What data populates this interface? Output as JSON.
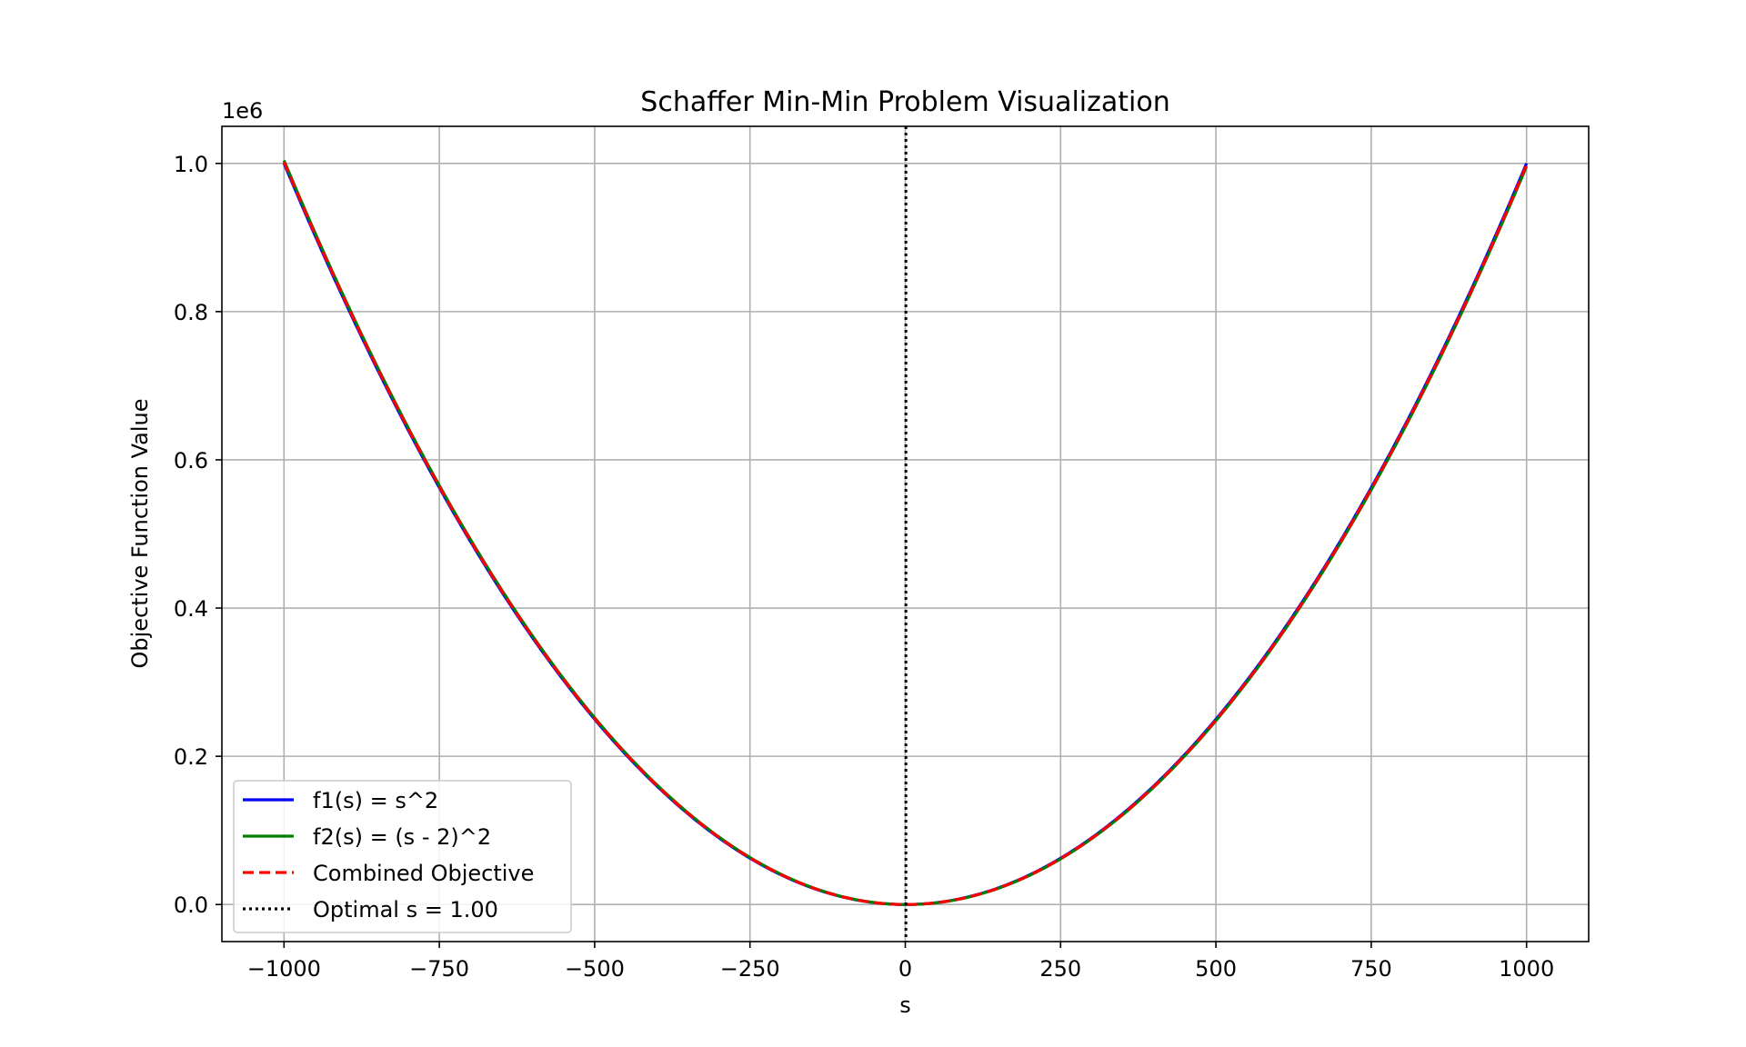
{
  "chart_data": {
    "type": "line",
    "title": "Schaffer Min-Min Problem Visualization",
    "xlabel": "s",
    "ylabel": "Objective Function Value",
    "offset_label": "1e6",
    "xlim": [
      -1100,
      1100
    ],
    "ylim": [
      -0.05,
      1.05
    ],
    "y_scale_factor": 1000000,
    "x_ticks": [
      -1000,
      -750,
      -500,
      -250,
      0,
      250,
      500,
      750,
      1000
    ],
    "x_tick_labels": [
      "−1000",
      "−750",
      "−500",
      "−250",
      "0",
      "250",
      "500",
      "750",
      "1000"
    ],
    "y_ticks": [
      0.0,
      0.2,
      0.4,
      0.6,
      0.8,
      1.0
    ],
    "y_tick_labels": [
      "0.0",
      "0.2",
      "0.4",
      "0.6",
      "0.8",
      "1.0"
    ],
    "grid": true,
    "legend_position": "lower-left",
    "series": [
      {
        "name": "f1(s) = s^2",
        "color": "#0000ff",
        "style": "solid",
        "func": "s^2"
      },
      {
        "name": "f2(s) = (s - 2)^2",
        "color": "#008000",
        "style": "solid",
        "func": "(s-2)^2"
      },
      {
        "name": "Combined Objective",
        "color": "#ff0000",
        "style": "dashed",
        "func": "((s^2)+(s-2)^2)/2"
      }
    ],
    "s_range": [
      -1000,
      1000
    ],
    "optimal_line": {
      "name": "Optimal s = 1.00",
      "x": 1.0,
      "color": "#000000",
      "style": "dotted"
    }
  }
}
